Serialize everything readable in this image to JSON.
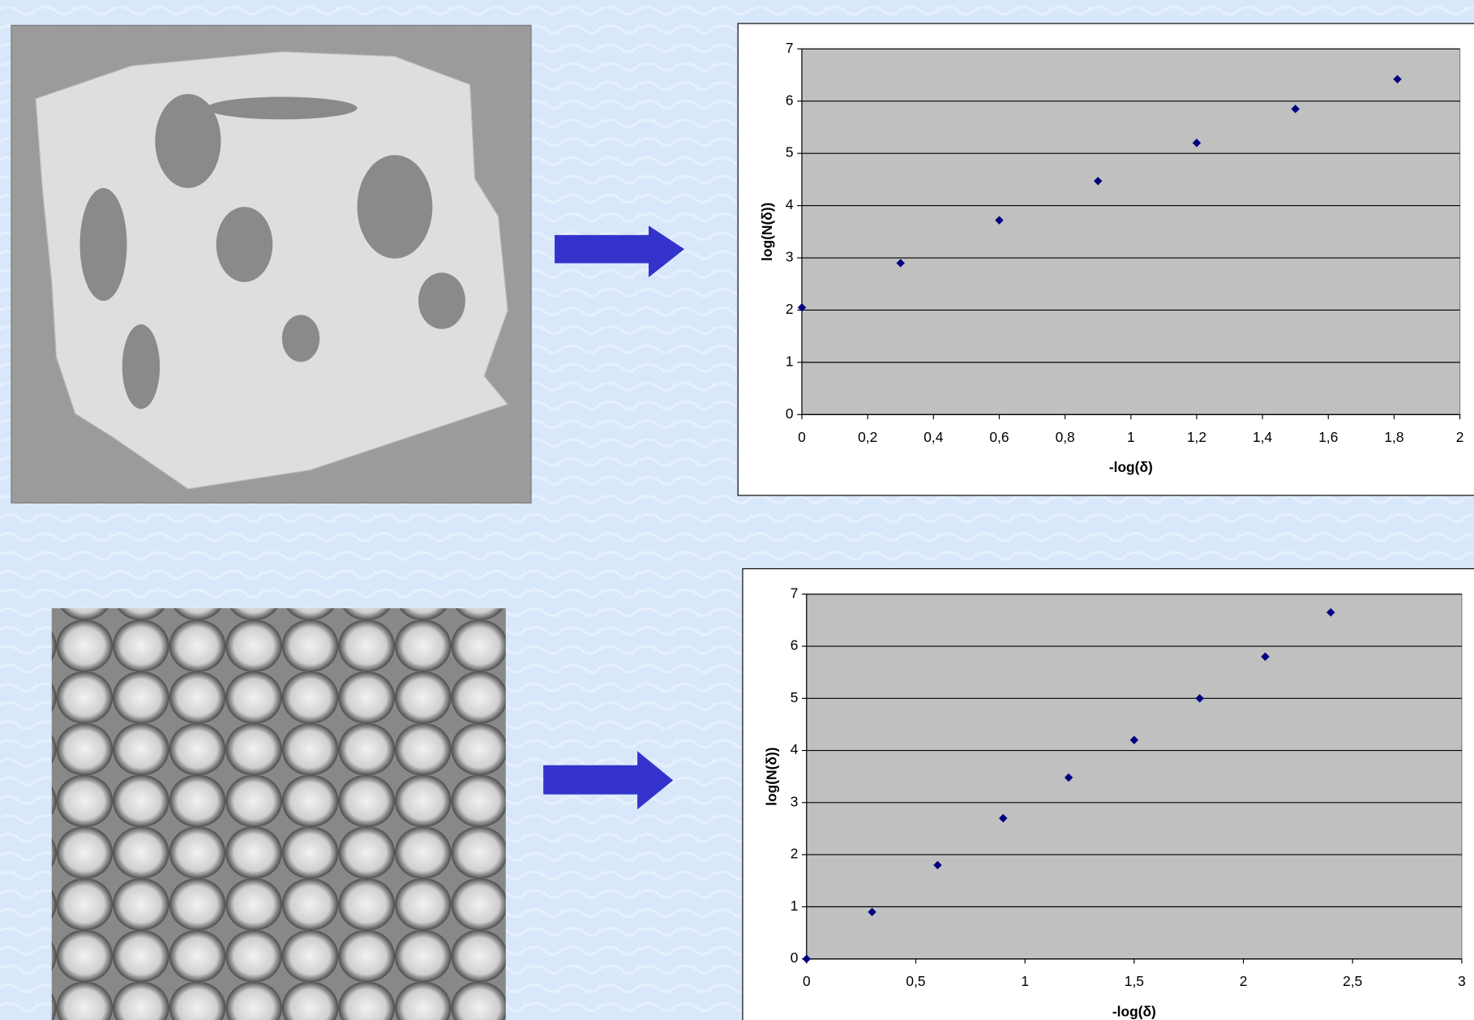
{
  "chart_data": [
    {
      "type": "scatter",
      "x_label": "-log(δ)",
      "y_label": "log(N(δ))",
      "x": [
        0,
        0.3,
        0.6,
        0.9,
        1.2,
        1.5,
        1.81
      ],
      "values": [
        2.05,
        2.9,
        3.72,
        4.47,
        5.2,
        5.85,
        6.42
      ],
      "color": "#000080",
      "xlim": [
        0,
        2
      ],
      "xticks": [
        0,
        {
          "value": 0.2,
          "label": "0,2"
        },
        {
          "value": 0.4,
          "label": "0,4"
        },
        {
          "value": 0.6,
          "label": "0,6"
        },
        {
          "value": 0.8,
          "label": "0,8"
        },
        1,
        {
          "value": 1.2,
          "label": "1,2"
        },
        {
          "value": 1.4,
          "label": "1,4"
        },
        {
          "value": 1.6,
          "label": "1,6"
        },
        {
          "value": 1.8,
          "label": "1,8"
        },
        2
      ],
      "ylim": [
        0,
        7
      ],
      "yticks": [
        0,
        1,
        2,
        3,
        4,
        5,
        6,
        7
      ],
      "grid": true
    },
    {
      "type": "scatter",
      "x_label": "-log(δ)",
      "y_label": "log(N(δ))",
      "x": [
        0,
        0.3,
        0.6,
        0.9,
        1.2,
        1.5,
        1.8,
        2.1,
        2.4
      ],
      "values": [
        0,
        0.9,
        1.8,
        2.7,
        3.48,
        4.2,
        5.0,
        5.8,
        6.65
      ],
      "color": "#000080",
      "xlim": [
        0,
        3
      ],
      "xticks": [
        0,
        {
          "value": 0.5,
          "label": "0,5"
        },
        1,
        {
          "value": 1.5,
          "label": "1,5"
        },
        2,
        {
          "value": 2.5,
          "label": "2,5"
        },
        3
      ],
      "ylim": [
        0,
        7
      ],
      "yticks": [
        0,
        1,
        2,
        3,
        4,
        5,
        6,
        7
      ],
      "grid": true
    }
  ]
}
